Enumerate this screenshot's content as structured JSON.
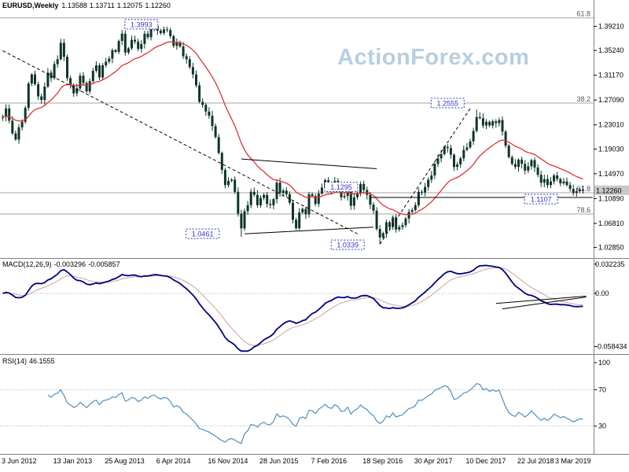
{
  "title": {
    "symbol": "EURUSD,Weekly",
    "open": "1.13588",
    "high": "1.13711",
    "low": "1.12075",
    "close": "1.12260"
  },
  "watermark": "ActionForex.com",
  "macd": {
    "label": "MACD(12,26,9)",
    "value_main": "-0.003296",
    "value_signal": "-0.005857"
  },
  "rsi": {
    "label": "RSI(14)",
    "value": "46.1555"
  },
  "colors": {
    "candle": "#0e3528",
    "ma": "#dd3333",
    "macd_main": "#000080",
    "macd_signal": "#cfa0a0",
    "rsi": "#4f8fc0",
    "annotation": "#3333cc",
    "fib_line": "#a6a6a6",
    "fib_text": "#555555",
    "price_box": "#c8c8c8",
    "level_dotted": "#a8b4c0",
    "separator": "#808080",
    "watermark": "#b9cedf"
  },
  "chart_data": {
    "type": "candlestick",
    "symbol": "EURUSD",
    "timeframe": "Weekly",
    "title": "EURUSD,Weekly 1.13588 1.13711 1.12075 1.12260",
    "x_labels": [
      "3 Jun 2012",
      "13 Jan 2013",
      "25 Aug 2013",
      "6 Apr 2014",
      "16 Nov 2014",
      "28 Jun 2015",
      "7 Feb 2016",
      "18 Sep 2016",
      "30 Apr 2017",
      "10 Dec 2017",
      "22 Jul 2018",
      "3 Mar 2019"
    ],
    "y_ticks": [
      1.3921,
      1.3524,
      1.3117,
      1.2709,
      1.2301,
      1.1903,
      1.1497,
      1.1089,
      1.0681,
      1.0285
    ],
    "price_range": [
      1.015,
      1.416
    ],
    "current_price": 1.1226,
    "closes": [
      1.243,
      1.257,
      1.237,
      1.216,
      1.206,
      1.226,
      1.235,
      1.258,
      1.298,
      1.313,
      1.297,
      1.277,
      1.271,
      1.293,
      1.316,
      1.307,
      1.33,
      1.338,
      1.365,
      1.342,
      1.307,
      1.296,
      1.282,
      1.29,
      1.311,
      1.299,
      1.285,
      1.302,
      1.319,
      1.328,
      1.308,
      1.328,
      1.334,
      1.339,
      1.353,
      1.35,
      1.368,
      1.38,
      1.349,
      1.356,
      1.37,
      1.367,
      1.355,
      1.363,
      1.38,
      1.374,
      1.388,
      1.393,
      1.385,
      1.381,
      1.387,
      1.386,
      1.376,
      1.36,
      1.365,
      1.359,
      1.343,
      1.338,
      1.325,
      1.313,
      1.295,
      1.268,
      1.263,
      1.252,
      1.245,
      1.228,
      1.21,
      1.184,
      1.156,
      1.131,
      1.138,
      1.14,
      1.12,
      1.084,
      1.06,
      1.088,
      1.098,
      1.12,
      1.115,
      1.098,
      1.11,
      1.115,
      1.1,
      1.098,
      1.108,
      1.135,
      1.118,
      1.122,
      1.116,
      1.102,
      1.074,
      1.06,
      1.086,
      1.092,
      1.083,
      1.116,
      1.113,
      1.1,
      1.117,
      1.127,
      1.139,
      1.127,
      1.122,
      1.138,
      1.131,
      1.111,
      1.113,
      1.127,
      1.097,
      1.111,
      1.117,
      1.133,
      1.123,
      1.115,
      1.099,
      1.089,
      1.059,
      1.045,
      1.052,
      1.07,
      1.062,
      1.078,
      1.058,
      1.062,
      1.065,
      1.076,
      1.087,
      1.09,
      1.098,
      1.12,
      1.119,
      1.128,
      1.14,
      1.147,
      1.166,
      1.175,
      1.182,
      1.194,
      1.192,
      1.181,
      1.161,
      1.165,
      1.175,
      1.189,
      1.193,
      1.203,
      1.22,
      1.243,
      1.241,
      1.229,
      1.235,
      1.229,
      1.236,
      1.233,
      1.238,
      1.219,
      1.196,
      1.177,
      1.166,
      1.161,
      1.173,
      1.166,
      1.155,
      1.162,
      1.172,
      1.16,
      1.148,
      1.135,
      1.141,
      1.131,
      1.137,
      1.147,
      1.141,
      1.134,
      1.137,
      1.131,
      1.125,
      1.118,
      1.121,
      1.124,
      1.1226
    ],
    "wick_overrides": {
      "47": {
        "high": 1.3993
      },
      "74": {
        "low": 1.0461
      },
      "117": {
        "low": 1.0339
      },
      "147": {
        "high": 1.2555
      }
    },
    "fib_levels": [
      {
        "label": "61.8",
        "price": 1.406
      },
      {
        "label": "38.2",
        "price": 1.266
      },
      {
        "label": "61.8",
        "price": 1.1185
      },
      {
        "label": "78.6",
        "price": 1.0836
      }
    ],
    "trendlines": [
      {
        "x1": 0,
        "p1": 1.352,
        "x2": 110,
        "p2": 1.051,
        "style": "dashed"
      },
      {
        "x1": 117,
        "p1": 1.034,
        "x2": 145,
        "p2": 1.257,
        "style": "dashed"
      },
      {
        "x1": 74,
        "p1": 1.174,
        "x2": 116,
        "p2": 1.158,
        "style": "solid"
      },
      {
        "x1": 75,
        "p1": 1.051,
        "x2": 115,
        "p2": 1.062,
        "style": "solid"
      },
      {
        "x1": 114,
        "p1": 1.1107,
        "x2": 183,
        "p2": 1.1107,
        "style": "solid"
      }
    ],
    "annotations": [
      {
        "text": "1.3993",
        "x": 43,
        "price": 1.3955
      },
      {
        "text": "1.2555",
        "x": 138,
        "price": 1.266
      },
      {
        "text": "1.1295",
        "x": 105,
        "price": 1.128
      },
      {
        "text": "1.1107",
        "x": 167,
        "price": 1.108
      },
      {
        "text": "1.0461",
        "x": 62,
        "price": 1.051
      },
      {
        "text": "1.0339",
        "x": 107,
        "price": 1.033
      }
    ],
    "macd": {
      "label": "MACD(12,26,9)",
      "main": -0.003296,
      "signal": -0.005857
    },
    "macd_ticks": [
      0.032235,
      0,
      -0.058434
    ],
    "macd_range": [
      -0.065,
      0.0355
    ],
    "macd_trendlines": [
      {
        "x1": 153,
        "v1": -0.011,
        "x2": 181,
        "v2": -0.003
      },
      {
        "x1": 155,
        "v1": -0.017,
        "x2": 181,
        "v2": -0.004
      }
    ],
    "rsi": {
      "label": "RSI(14)",
      "value": 46.1555,
      "levels": [
        70,
        30
      ]
    },
    "rsi_ticks": [
      100,
      70,
      30
    ]
  }
}
